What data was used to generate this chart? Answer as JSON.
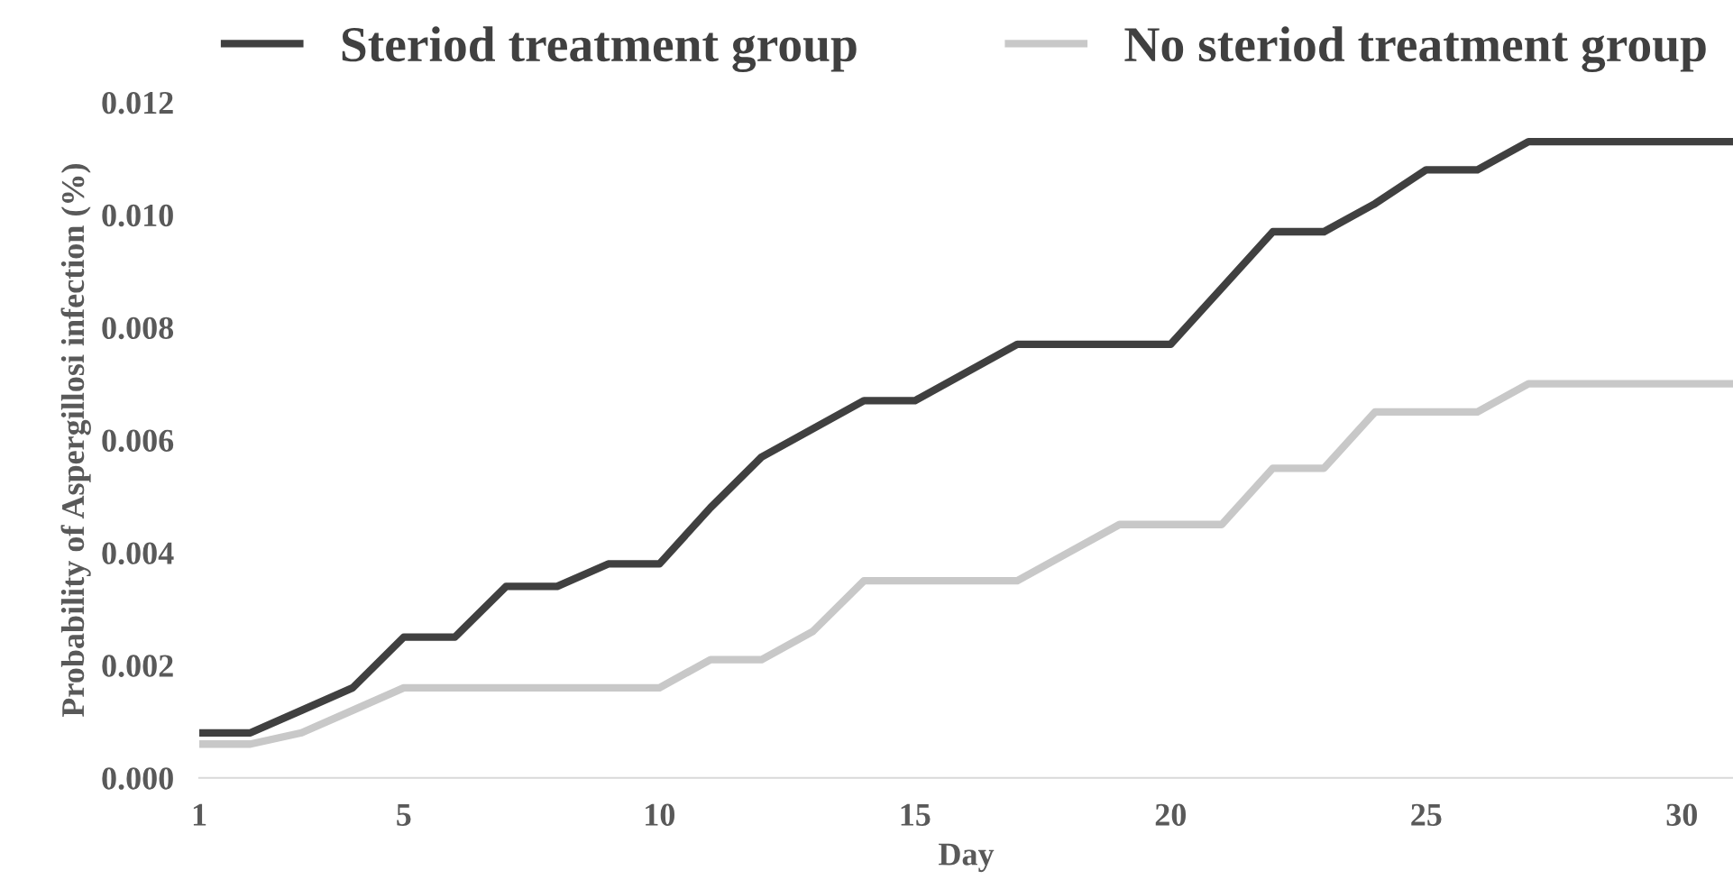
{
  "chart_data": {
    "type": "line",
    "xlabel": "Day",
    "ylabel": "Probability of Aspergillosi infection (%)",
    "x": [
      1,
      2,
      3,
      4,
      5,
      6,
      7,
      8,
      9,
      10,
      11,
      12,
      13,
      14,
      15,
      16,
      17,
      18,
      19,
      20,
      21,
      22,
      23,
      24,
      25,
      26,
      27,
      28,
      29,
      30,
      31
    ],
    "series": [
      {
        "name": "Steriod treatment group",
        "color": "#404040",
        "values": [
          0.0008,
          0.0008,
          0.0012,
          0.0016,
          0.0025,
          0.0025,
          0.0034,
          0.0034,
          0.0038,
          0.0038,
          0.0048,
          0.0057,
          0.0062,
          0.0067,
          0.0067,
          0.0072,
          0.0077,
          0.0077,
          0.0077,
          0.0077,
          0.0087,
          0.0097,
          0.0097,
          0.0102,
          0.0108,
          0.0108,
          0.0113,
          0.0113,
          0.0113,
          0.0113,
          0.0113
        ]
      },
      {
        "name": "No steriod treatment group",
        "color": "#c8c8c8",
        "values": [
          0.0006,
          0.0006,
          0.0008,
          0.0012,
          0.0016,
          0.0016,
          0.0016,
          0.0016,
          0.0016,
          0.0016,
          0.0021,
          0.0021,
          0.0026,
          0.0035,
          0.0035,
          0.0035,
          0.0035,
          0.004,
          0.0045,
          0.0045,
          0.0045,
          0.0055,
          0.0055,
          0.0065,
          0.0065,
          0.0065,
          0.007,
          0.007,
          0.007,
          0.007,
          0.007
        ]
      }
    ],
    "xlim": [
      1,
      31
    ],
    "xticks": [
      1,
      5,
      10,
      15,
      20,
      25,
      30
    ],
    "ylim": [
      0,
      0.012
    ],
    "yticks": [
      {
        "value": 0,
        "label": "0.000"
      },
      {
        "value": 0.002,
        "label": "0.002"
      },
      {
        "value": 0.004,
        "label": "0.004"
      },
      {
        "value": 0.006,
        "label": "0.006"
      },
      {
        "value": 0.008,
        "label": "0.008"
      },
      {
        "value": 0.01,
        "label": "0.010"
      },
      {
        "value": 0.012,
        "label": "0.012"
      }
    ],
    "grid": false,
    "legend": "top",
    "marker": "none",
    "line_style": "solid"
  }
}
